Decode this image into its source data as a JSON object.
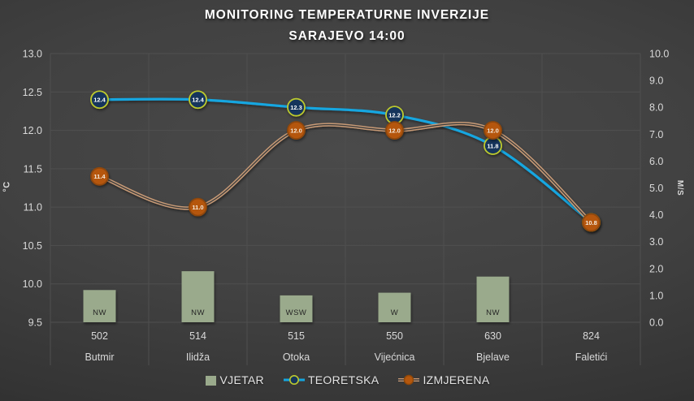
{
  "title": {
    "line1": "MONITORING TEMPERATURNE INVERZIJE",
    "line2": "SARAJEVO 14:00"
  },
  "chart_data": {
    "type": "combo-bar-line",
    "title": "MONITORING TEMPERATURNE INVERZIJE SARAJEVO 14:00",
    "categories": [
      "Butmir",
      "Ilidža",
      "Otoka",
      "Vijećnica",
      "Bjelave",
      "Faletići"
    ],
    "elevations": [
      "502",
      "514",
      "515",
      "550",
      "630",
      "824"
    ],
    "left_axis": {
      "label": "°C",
      "min": 9.5,
      "max": 13.0,
      "ticks": [
        "13.0",
        "12.5",
        "12.0",
        "11.5",
        "11.0",
        "10.5",
        "10.0",
        "9.5"
      ]
    },
    "right_axis": {
      "label": "M/S",
      "min": 0.0,
      "max": 10.0,
      "ticks": [
        "10.0",
        "9.0",
        "8.0",
        "7.0",
        "6.0",
        "5.0",
        "4.0",
        "3.0",
        "2.0",
        "1.0",
        "0.0"
      ]
    },
    "bar_series": {
      "name": "VJETAR",
      "type": "bar",
      "axis": "right",
      "values": [
        1.2,
        1.9,
        1.0,
        1.1,
        1.7,
        null
      ],
      "wind_directions": [
        "NW",
        "NW",
        "WSW",
        "W",
        "NW",
        null
      ]
    },
    "line_series": [
      {
        "name": "TEORETSKA",
        "type": "line",
        "axis": "left",
        "values": [
          12.4,
          12.4,
          12.3,
          12.2,
          11.8,
          10.8
        ],
        "point_labels": [
          "12.4",
          "12.4",
          "12.3",
          "12.2",
          "11.8",
          "10.8"
        ]
      },
      {
        "name": "IZMJERENA",
        "type": "line",
        "axis": "left",
        "values": [
          11.4,
          11.0,
          12.0,
          12.0,
          12.0,
          10.8
        ],
        "point_labels": [
          "11.4",
          "11.0",
          "12.0",
          "12.0",
          "12.0",
          "10.8"
        ]
      }
    ],
    "legend": {
      "position": "bottom",
      "items": [
        {
          "label": "VJETAR"
        },
        {
          "label": "TEORETSKA"
        },
        {
          "label": "IZMJERENA"
        }
      ]
    },
    "grid": "on",
    "colors": {
      "gridline": "#4F4F4F",
      "tick_text": "#D9D9D9",
      "title_text": "#FFFFFF",
      "bar_fill": "#9AAA8C",
      "bar_label_text": "#262626",
      "teoretska_line": "#14A6E0",
      "teoretska_marker_fill": "#16365C",
      "teoretska_marker_border": "#BCC92E",
      "teoretska_label_text": "#FFFFFF",
      "izmjerena_line": "#C79A76",
      "izmjerena_line_center": "#3D3D3D",
      "izmjerena_marker_fill": "#B5570D",
      "izmjerena_marker_border": "#8F4708",
      "izmjerena_label_text": "#F5EADC"
    }
  }
}
